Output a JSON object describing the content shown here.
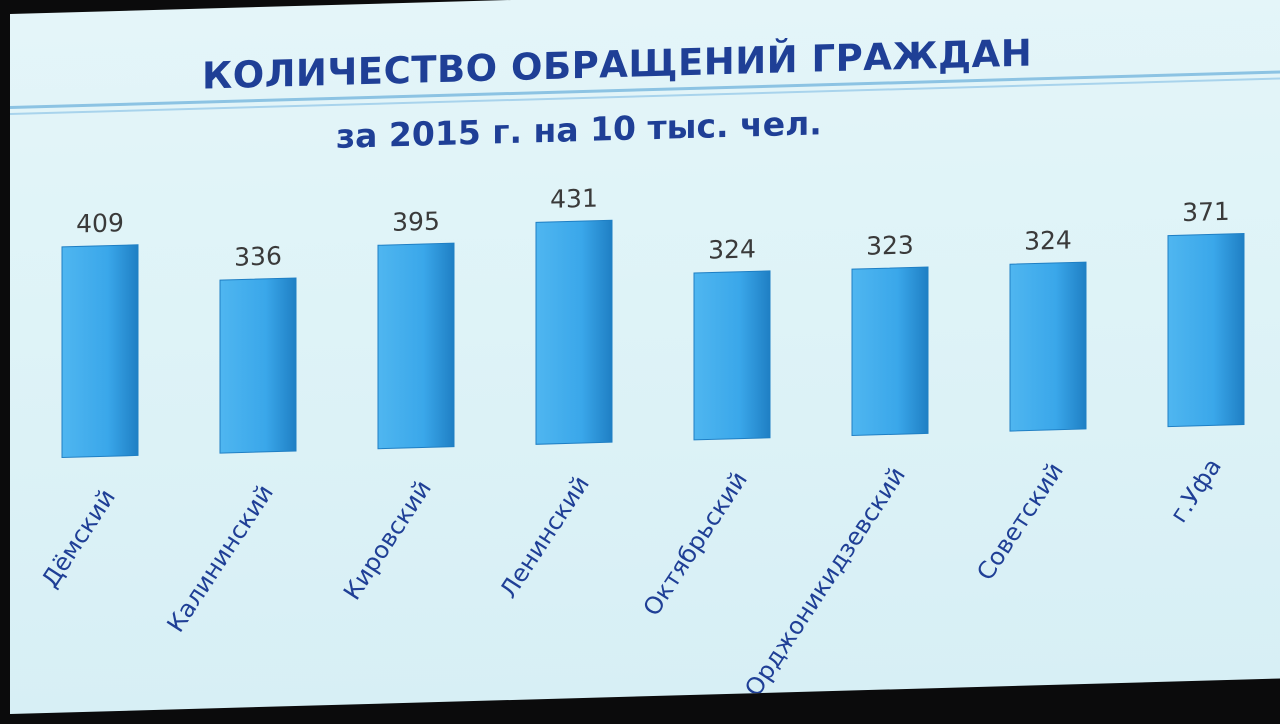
{
  "chart_data": {
    "type": "bar",
    "title": "КОЛИЧЕСТВО ОБРАЩЕНИЙ ГРАЖДАН",
    "subtitle": "за 2015 г. на 10 тыс. чел.",
    "categories": [
      "Дёмский",
      "Калининский",
      "Кировский",
      "Ленинский",
      "Октябрьский",
      "Орджоникидзевский",
      "Советский",
      "г.Уфа"
    ],
    "values": [
      409,
      336,
      395,
      431,
      324,
      323,
      324,
      371
    ],
    "xlabel": "",
    "ylabel": "",
    "grid": false,
    "legend": "none",
    "colors": {
      "bar": "#3aa7ea",
      "bar_light": "#4fb6f0",
      "bar_edge": "#1f7fc4",
      "text_values": "#3a3a3a",
      "text_categories": "#1f3f96",
      "title": "#1f3f96"
    }
  }
}
